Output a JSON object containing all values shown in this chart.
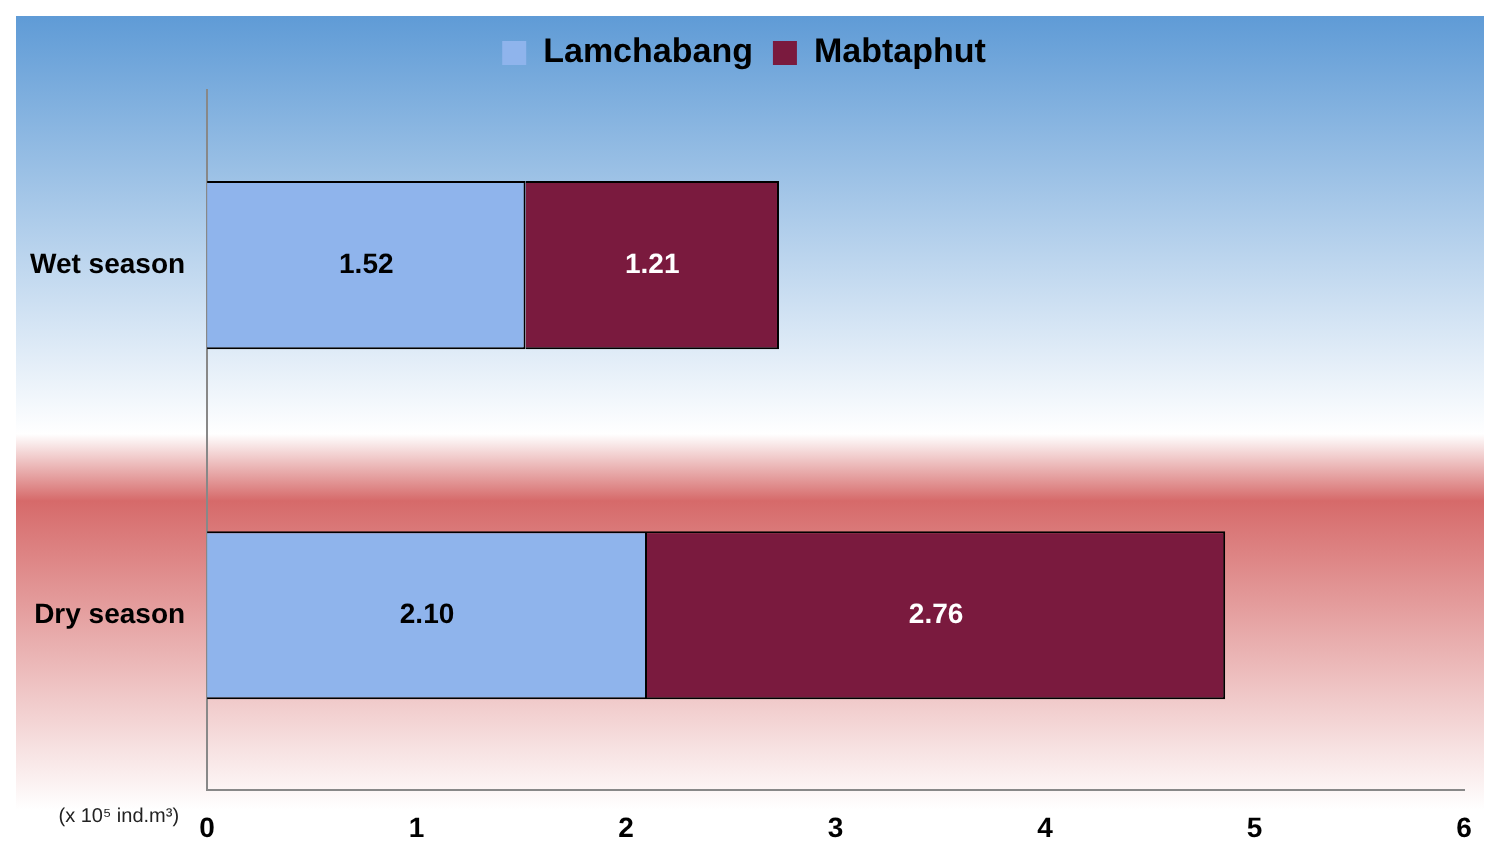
{
  "chart_data": {
    "type": "bar",
    "orientation": "horizontal",
    "stacked": true,
    "categories": [
      "Wet season",
      "Dry season"
    ],
    "xlabel": "(x 10⁵ ind.m³)",
    "series": [
      {
        "name": "Lamchabang",
        "color": "#8fb4ec",
        "values": [
          1.52,
          2.1
        ],
        "value_labels": [
          "1.52",
          "2.10"
        ]
      },
      {
        "name": "Mabtaphut",
        "color": "#7a1a3e",
        "values": [
          1.21,
          2.76
        ],
        "value_labels": [
          "1.21",
          "2.76"
        ]
      }
    ],
    "xlim": [
      0,
      6
    ],
    "xticks": [
      0,
      1,
      2,
      3,
      4,
      5,
      6
    ],
    "legend": "top",
    "grid": false
  }
}
